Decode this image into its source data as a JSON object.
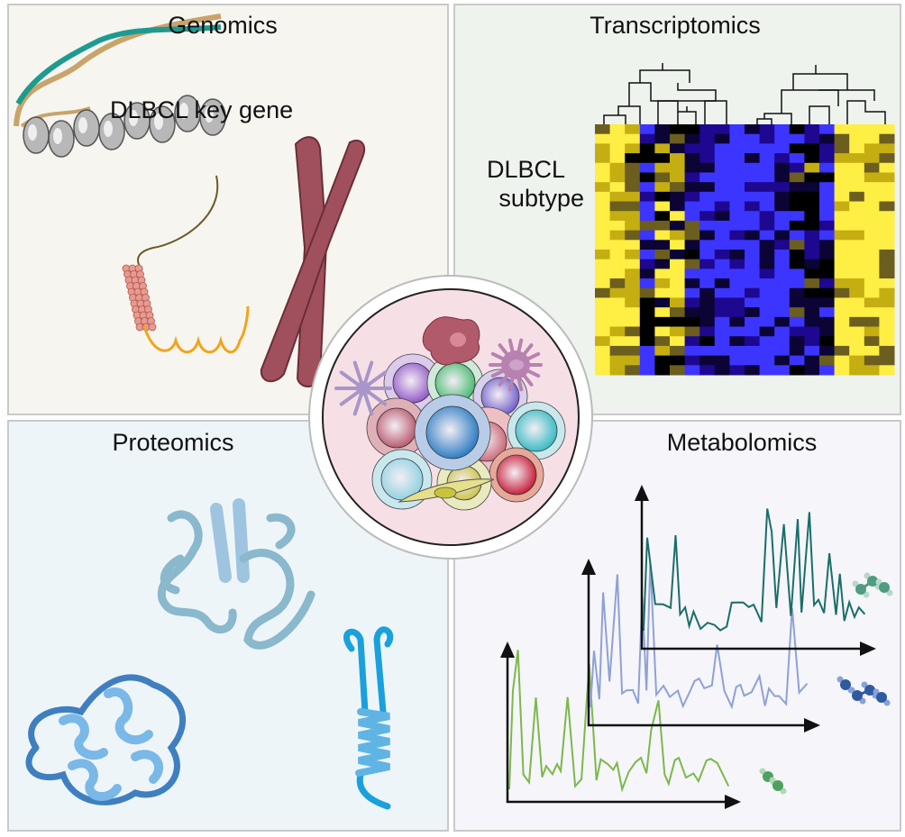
{
  "panels": {
    "genomics": {
      "title": "Genomics",
      "label": "DLBCL key gene"
    },
    "transcriptomics": {
      "title": "Transcriptomics",
      "label_line1": "DLBCL",
      "label_line2": "subtype"
    },
    "proteomics": {
      "title": "Proteomics"
    },
    "metabolomics": {
      "title": "Metabolomics"
    }
  },
  "center": {
    "description_icons": [
      "macrophage-cell-icon",
      "dendritic-cell-icon",
      "lymphocyte-cell-icon",
      "fibroblast-cell-icon"
    ]
  },
  "colors": {
    "heatmap": [
      "#ffee44",
      "#c4ae12",
      "#6b5e1e",
      "#000000",
      "#0b0435",
      "#1e0890",
      "#3c35ff"
    ],
    "spectra": [
      "#7cb84a",
      "#8fa1d4",
      "#1a6e68"
    ],
    "molecules": [
      "#4fa060",
      "#2f5aa0",
      "#4f9c80"
    ],
    "cells": [
      "#8b4fc4",
      "#3fb86a",
      "#6a58c8",
      "#b55068",
      "#1e74c0",
      "#c86070",
      "#2ab8c0",
      "#c4102c",
      "#8ad0e0",
      "#c8c040"
    ]
  }
}
